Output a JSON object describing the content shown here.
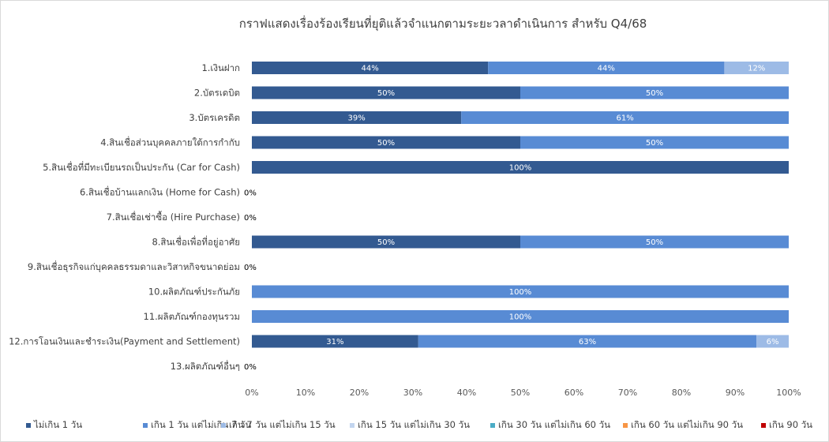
{
  "chart_data": {
    "type": "bar",
    "orientation": "horizontal",
    "stacked": "percent",
    "title": "กราฟแสดงเรื่องร้องเรียนที่ยุติแล้วจำแนกตามระยะวลาดำเนินการ สำหรับ Q4/68",
    "categories": [
      "1.เงินฝาก",
      "2.บัตรเดบิต",
      "3.บัตรเครดิต",
      "4.สินเชื่อส่วนบุคคลภายใต้การกำกับ",
      "5.สินเชื่อที่มีทะเบียนรถเป็นประกัน  (Car for Cash)",
      "6.สินเชื่อบ้านแลกเงิน  (Home for Cash)",
      "7.สินเชื่อเช่าซื้อ  (Hire Purchase)",
      "8.สินเชื่อเพื่อที่อยู่อาศัย",
      "9.สินเชื่อธุรกิจแก่บุคคลธรรมดาและวิสาหกิจขนาดย่อม",
      "10.ผลิตภัณฑ์ประกันภัย",
      "11.ผลิตภัณฑ์กองทุนรวม",
      "12.การโอนเงินและชำระเงิน(Payment   and Settlement)",
      "13.ผลิตภัณฑ์อื่นๆ"
    ],
    "series": [
      {
        "name": "ไม่เกิน 1 วัน",
        "color": "#335a91",
        "values": [
          44,
          50,
          39,
          50,
          100,
          0,
          0,
          50,
          0,
          0,
          0,
          31,
          0
        ]
      },
      {
        "name": "เกิน 1 วัน แต่ไม่เกิน 7 วัน",
        "color": "#588bd4",
        "values": [
          44,
          50,
          61,
          50,
          0,
          0,
          0,
          50,
          0,
          100,
          100,
          63,
          0
        ]
      },
      {
        "name": "เกิน 7 วัน แต่ไม่เกิน 15 วัน",
        "color": "#9dbbe6",
        "values": [
          12,
          0,
          0,
          0,
          0,
          0,
          0,
          0,
          0,
          0,
          0,
          6,
          0
        ]
      },
      {
        "name": "เกิน 15 วัน แต่ไม่เกิน 30 วัน",
        "color": "#c3d5ef",
        "values": [
          0,
          0,
          0,
          0,
          0,
          0,
          0,
          0,
          0,
          0,
          0,
          0,
          0
        ]
      },
      {
        "name": "เกิน 30 วัน แต่ไม่เกิน 60 วัน",
        "color": "#4bacc6",
        "values": [
          0,
          0,
          0,
          0,
          0,
          0,
          0,
          0,
          0,
          0,
          0,
          0,
          0
        ]
      },
      {
        "name": "เกิน 60 วัน แต่ไม่เกิน 90 วัน",
        "color": "#f79646",
        "values": [
          0,
          0,
          0,
          0,
          0,
          0,
          0,
          0,
          0,
          0,
          0,
          0,
          0
        ]
      },
      {
        "name": "เกิน 90 วัน",
        "color": "#c00000",
        "values": [
          0,
          0,
          0,
          0,
          0,
          0,
          0,
          0,
          0,
          0,
          0,
          0,
          0
        ]
      }
    ],
    "bar_labels": [
      [
        "44%",
        "44%",
        "12%"
      ],
      [
        "50%",
        "50%"
      ],
      [
        "39%",
        "61%"
      ],
      [
        "50%",
        "50%"
      ],
      [
        "100%"
      ],
      [],
      [],
      [
        "50%",
        "50%"
      ],
      [],
      [
        "100%"
      ],
      [
        "100%"
      ],
      [
        "31%",
        "63%",
        "6%"
      ],
      []
    ],
    "zero_label": "0%",
    "x_ticks": [
      "0%",
      "10%",
      "20%",
      "30%",
      "40%",
      "50%",
      "60%",
      "70%",
      "80%",
      "90%",
      "100%"
    ],
    "xlim": [
      0,
      100
    ],
    "grid": false,
    "legend_position": "bottom"
  }
}
